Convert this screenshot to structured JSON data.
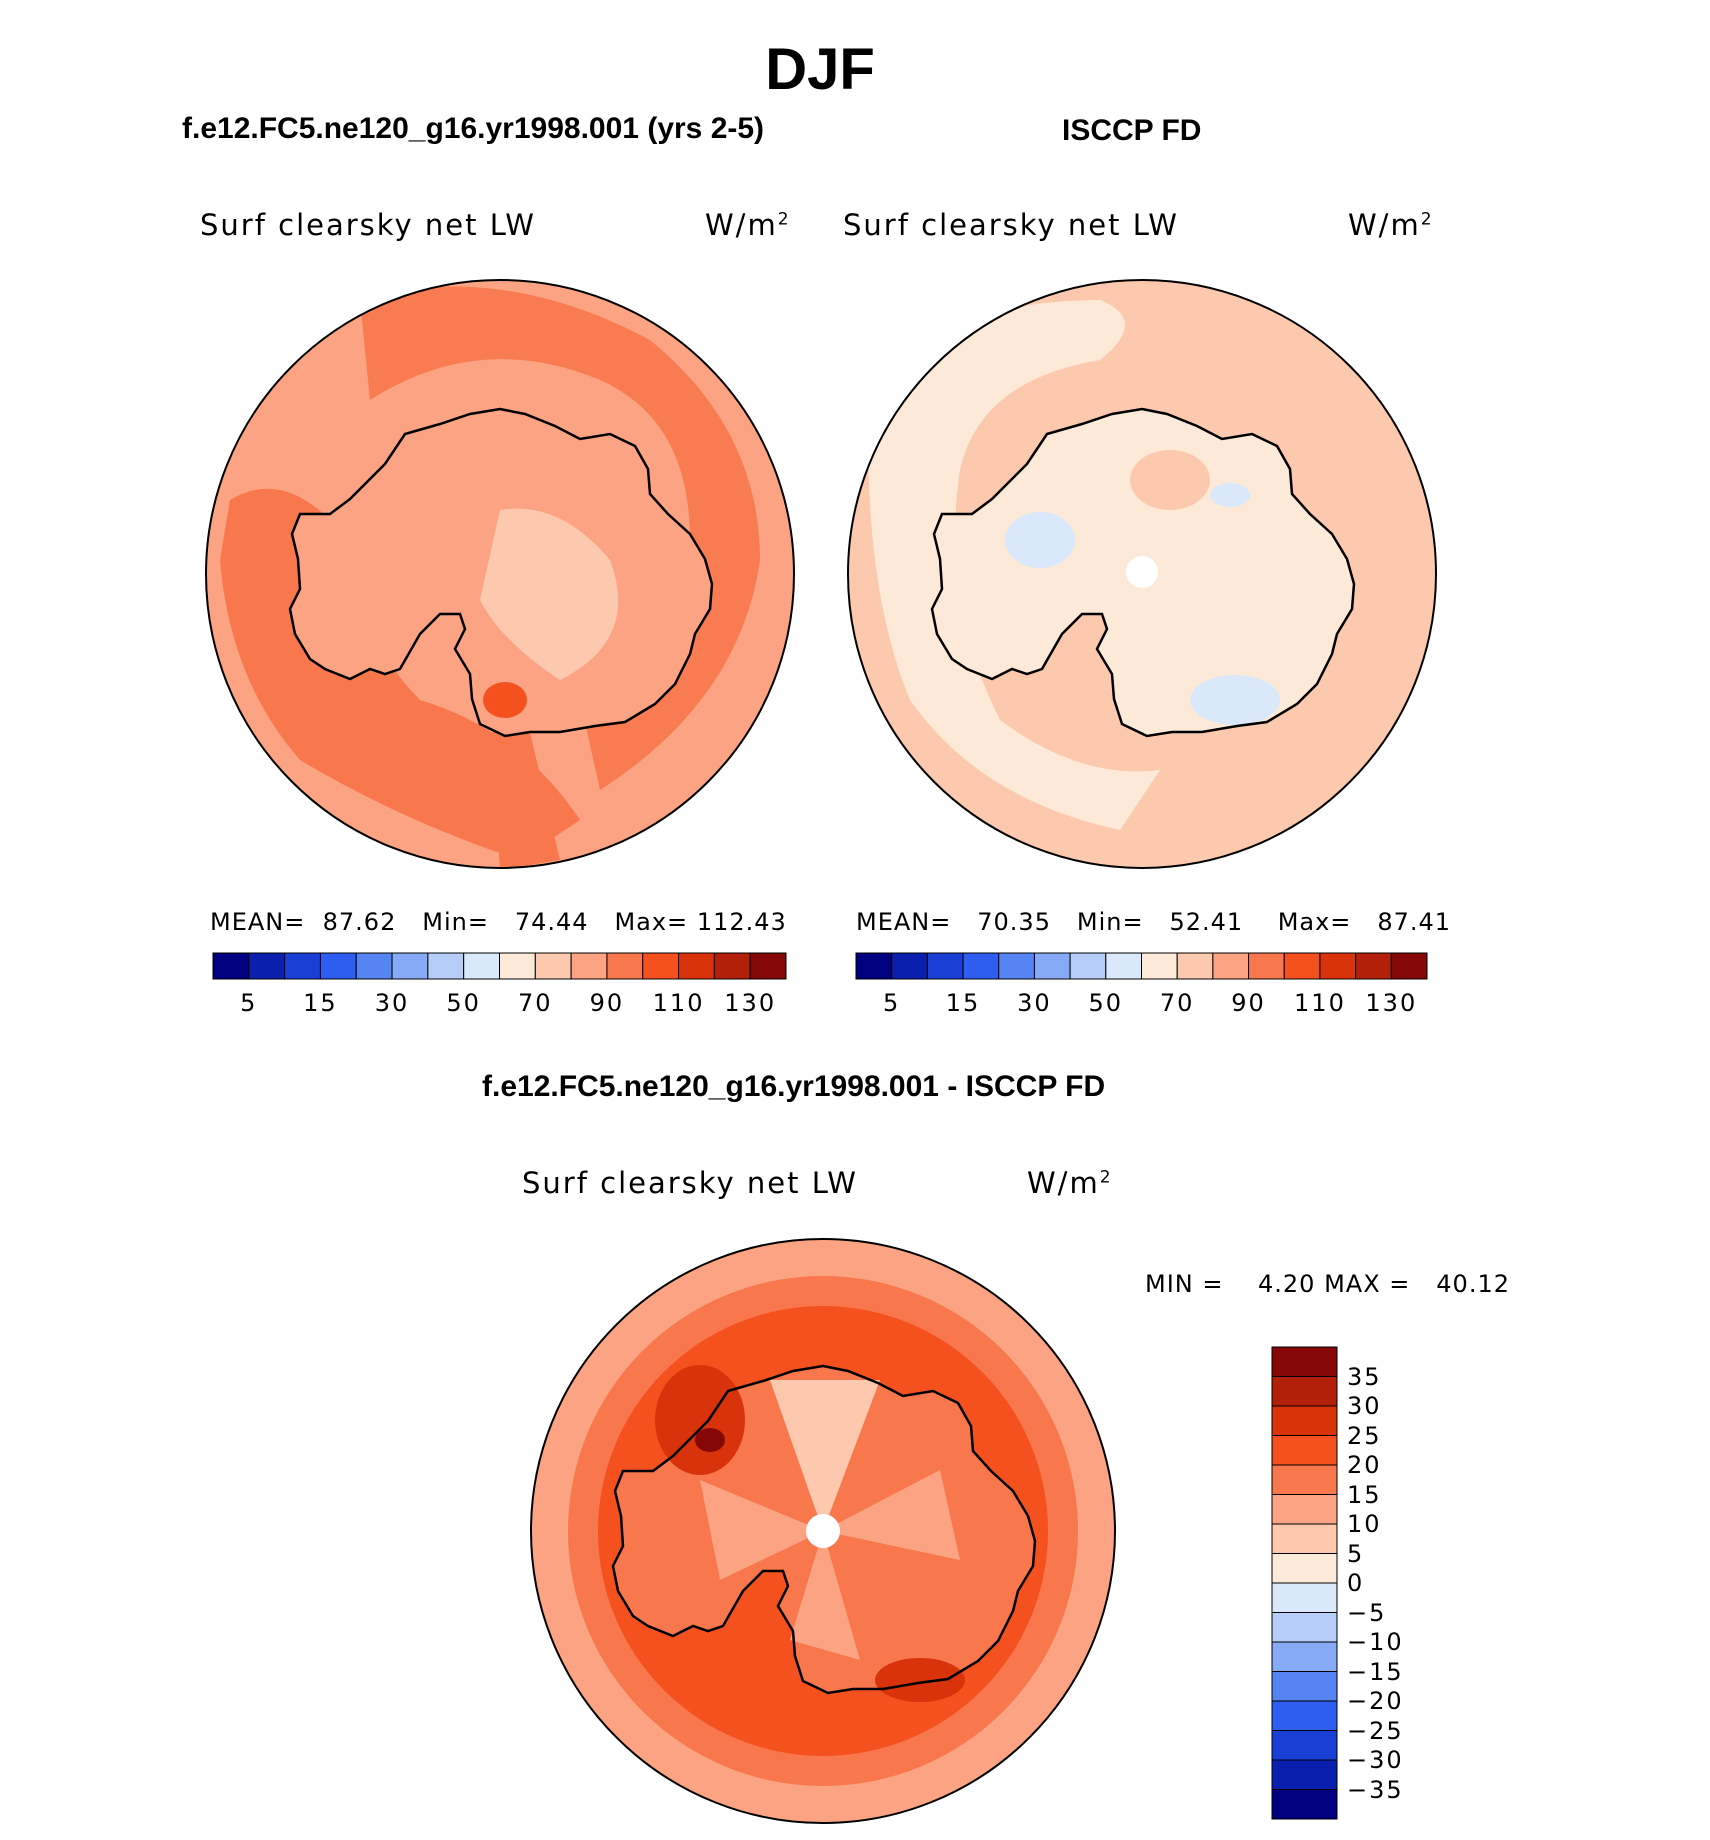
{
  "title": "DJF",
  "panels": [
    {
      "title": "f.e12.FC5.ne120_g16.yr1998.001 (yrs 2-5)",
      "variable": "Surf clearsky net LW",
      "units": "W/m",
      "units_exp": "2",
      "stats": {
        "mean_label": "MEAN=",
        "mean": "87.62",
        "min_label": "Min=",
        "min": "74.44",
        "max_label": "Max=",
        "max": "112.43"
      }
    },
    {
      "title": "ISCCP FD",
      "variable": "Surf clearsky net LW",
      "units": "W/m",
      "units_exp": "2",
      "stats": {
        "mean_label": "MEAN=",
        "mean": "70.35",
        "min_label": "Min=",
        "min": "52.41",
        "max_label": "Max=",
        "max": "87.41"
      }
    },
    {
      "title": "f.e12.FC5.ne120_g16.yr1998.001 - ISCCP FD",
      "variable": "Surf clearsky net LW",
      "units": "W/m",
      "units_exp": "2",
      "stats": {
        "min_label": "MIN =",
        "min": "4.20",
        "max_label": "MAX =",
        "max": "40.12"
      }
    }
  ],
  "colorbar_h": {
    "colors": [
      "#000080",
      "#0a1fae",
      "#1a3fd6",
      "#2e5ef0",
      "#5485f2",
      "#86aaf5",
      "#b5cdf8",
      "#d9e9fb",
      "#fde9d8",
      "#fcc9ae",
      "#fba382",
      "#f8774c",
      "#f4511f",
      "#d8330a",
      "#b3200a",
      "#860707"
    ],
    "labels": [
      "5",
      "15",
      "30",
      "50",
      "70",
      "90",
      "110",
      "130"
    ]
  },
  "colorbar_v": {
    "colors": [
      "#860707",
      "#b3200a",
      "#d8330a",
      "#f4511f",
      "#f8774c",
      "#fba382",
      "#fcc9ae",
      "#fde9d8",
      "#d9e9fb",
      "#b5cdf8",
      "#86aaf5",
      "#5485f2",
      "#2e5ef0",
      "#1a3fd6",
      "#0a1fae",
      "#000080"
    ],
    "labels": [
      "35",
      "30",
      "25",
      "20",
      "15",
      "10",
      "5",
      "0",
      "−5",
      "−10",
      "−15",
      "−20",
      "−25",
      "−30",
      "−35"
    ]
  }
}
